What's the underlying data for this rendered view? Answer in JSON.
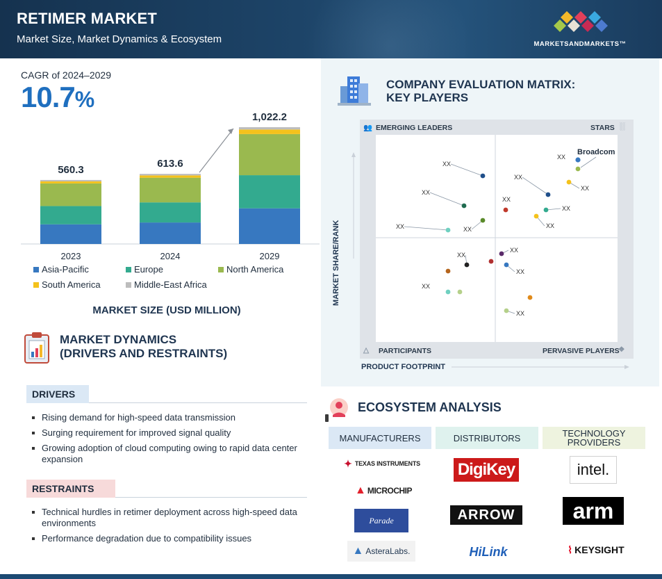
{
  "header": {
    "title": "RETIMER MARKET",
    "subtitle": "Market Size, Market Dynamics & Ecosystem",
    "logo_text": "MARKETSANDMARKETS™"
  },
  "cagr": {
    "label": "CAGR of 2024–2029",
    "value": "10.7",
    "unit": "%"
  },
  "chart_data": {
    "type": "bar",
    "stacked": true,
    "categories": [
      "2023",
      "2024",
      "2029"
    ],
    "totals": [
      "560.3",
      "613.6",
      "1,022.2"
    ],
    "total_values": [
      560.3,
      613.6,
      1022.2
    ],
    "series": [
      {
        "name": "Asia-Pacific",
        "color": "#3778c0",
        "values": [
          172,
          188,
          312
        ]
      },
      {
        "name": "Europe",
        "color": "#33aa8f",
        "values": [
          160,
          176,
          290
        ]
      },
      {
        "name": "North America",
        "color": "#9ab94f",
        "values": [
          198,
          216,
          360
        ]
      },
      {
        "name": "South America",
        "color": "#f4c21c",
        "values": [
          18,
          20,
          40
        ]
      },
      {
        "name": "Middle-East Africa",
        "color": "#bdbdbd",
        "values": [
          12.3,
          13.6,
          20.2
        ]
      }
    ],
    "title": "MARKET SIZE (USD MILLION)",
    "legend_position": "bottom",
    "grid": false
  },
  "dynamics": {
    "title_line1": "MARKET DYNAMICS",
    "title_line2": "(DRIVERS AND RESTRAINTS)",
    "drivers_label": "DRIVERS",
    "drivers": [
      "Rising demand for high-speed data transmission",
      "Surging requirement for improved signal quality",
      "Growing adoption of cloud computing owing to rapid data center expansion"
    ],
    "restraints_label": "RESTRAINTS",
    "restraints": [
      "Technical hurdles in retimer deployment across high-speed data environments",
      "Performance degradation due to compatibility issues"
    ]
  },
  "matrix": {
    "title_line1": "COMPANY EVALUATION MATRIX:",
    "title_line2": "KEY PLAYERS",
    "quadrants": {
      "top_left": "EMERGING LEADERS",
      "top_right": "STARS",
      "bottom_left": "PARTICIPANTS",
      "bottom_right": "PERVASIVE PLAYERS"
    },
    "y_axis": "MARKET SHARE/RANK",
    "x_axis": "PRODUCT FOOTPRINT",
    "highlight_label": "Broadcom",
    "point_label": "XX"
  },
  "ecosystem": {
    "title": "ECOSYSTEM ANALYSIS",
    "columns": [
      "MANUFACTURERS",
      "DISTRIBUTORS",
      "TECHNOLOGY PROVIDERS"
    ],
    "manufacturers": [
      "Texas Instruments",
      "MICROCHIP",
      "Parade",
      "AsteraLabs."
    ],
    "distributors": [
      "DigiKey",
      "ARROW",
      "HiLink"
    ],
    "technology_providers": [
      "intel.",
      "arm",
      "KEYSIGHT"
    ]
  }
}
